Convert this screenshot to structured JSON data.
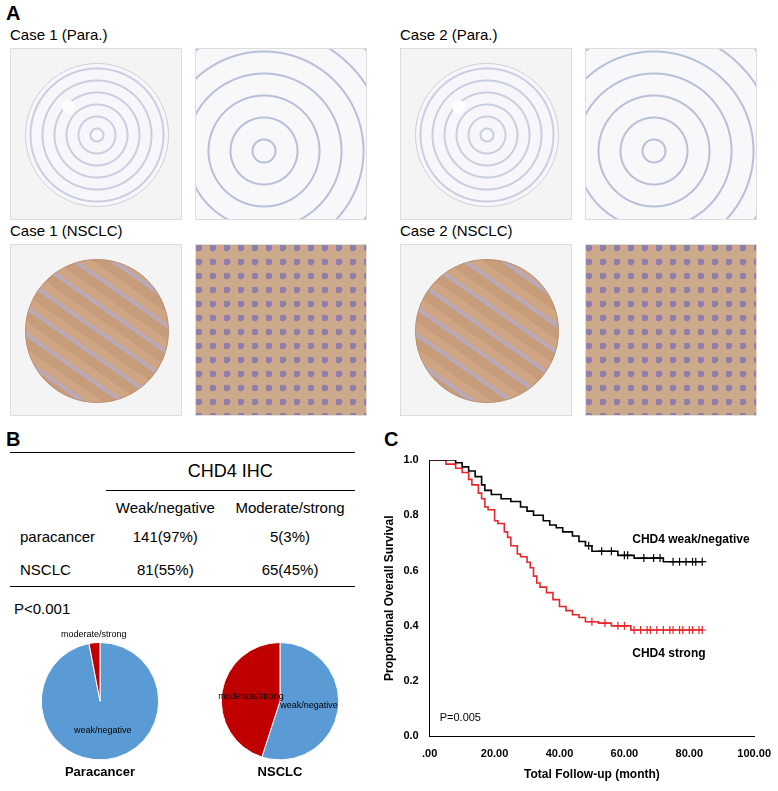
{
  "panel_labels": [
    "A",
    "B",
    "C"
  ],
  "images": [
    {
      "label": "Case 1 (Para.)"
    },
    {
      "label": "Case 2 (Para.)"
    },
    {
      "label": "Case 1 (NSCLC)"
    },
    {
      "label": "Case 2 (NSCLC)"
    }
  ],
  "table": {
    "title": "CHD4 IHC",
    "columns": [
      "Weak/negative",
      "Moderate/strong"
    ],
    "rows": [
      {
        "label": "paracancer",
        "cells": [
          "141(97%)",
          "5(3%)"
        ]
      },
      {
        "label": "NSCLC",
        "cells": [
          "81(55%)",
          "65(45%)"
        ]
      }
    ],
    "note": "P<0.001"
  },
  "chart_data": [
    {
      "type": "pie",
      "title": "Paracancer",
      "categories": [
        "weak/negative",
        "moderate/strong"
      ],
      "values": [
        97,
        3
      ],
      "colors": [
        "#5b9bd5",
        "#c00000"
      ]
    },
    {
      "type": "pie",
      "title": "NSCLC",
      "categories": [
        "weak/negative",
        "moderate/strong"
      ],
      "values": [
        55,
        45
      ],
      "colors": [
        "#5b9bd5",
        "#c00000"
      ]
    },
    {
      "type": "line",
      "x_label": "Total Follow-up (month)",
      "y_label": "Proportional Overall Survival",
      "xlim": [
        0,
        100
      ],
      "xticks": [
        {
          "value": 0,
          "label": ".00"
        },
        {
          "value": 20,
          "label": "20.00"
        },
        {
          "value": 40,
          "label": "40.00"
        },
        {
          "value": 60,
          "label": "60.00"
        },
        {
          "value": 80,
          "label": "80.00"
        },
        {
          "value": 100,
          "label": "100.00"
        }
      ],
      "ylim": [
        0,
        1
      ],
      "yticks": [
        {
          "value": 0,
          "label": "0.0"
        },
        0.2,
        0.4,
        0.6,
        0.8,
        {
          "value": 1,
          "label": "1.0"
        }
      ],
      "grid": false,
      "line_style": "step",
      "annotations": [
        "P=0.005"
      ],
      "series": [
        {
          "name": "CHD4 weak/negative",
          "color": "#000000",
          "marker": "cross",
          "x": [
            0,
            8,
            10,
            12,
            14,
            16,
            17,
            19,
            22,
            25,
            28,
            30,
            32,
            35,
            37,
            39,
            41,
            44,
            46,
            48,
            50,
            58,
            63,
            72,
            84
          ],
          "values": [
            1,
            0.99,
            0.975,
            0.96,
            0.94,
            0.91,
            0.89,
            0.875,
            0.86,
            0.85,
            0.83,
            0.815,
            0.8,
            0.78,
            0.765,
            0.755,
            0.74,
            0.725,
            0.705,
            0.69,
            0.67,
            0.655,
            0.645,
            0.632,
            0.632
          ],
          "censor_x": [
            49,
            53,
            56,
            60,
            61,
            66,
            69,
            71,
            75,
            77,
            79,
            81,
            82,
            84
          ],
          "censor_y": [
            0.69,
            0.67,
            0.67,
            0.655,
            0.655,
            0.645,
            0.645,
            0.645,
            0.632,
            0.632,
            0.632,
            0.632,
            0.632,
            0.632
          ]
        },
        {
          "name": "CHD4 strong",
          "color": "#e8262a",
          "marker": "cross",
          "x": [
            0,
            5,
            8,
            10,
            12,
            13,
            15,
            16,
            17,
            18,
            20,
            21,
            23,
            24,
            25,
            27,
            28,
            30,
            31,
            32,
            33,
            34,
            36,
            38,
            40,
            42,
            44,
            46,
            48,
            52,
            56,
            62,
            84
          ],
          "values": [
            1,
            0.985,
            0.97,
            0.955,
            0.93,
            0.91,
            0.88,
            0.86,
            0.83,
            0.82,
            0.78,
            0.77,
            0.74,
            0.72,
            0.69,
            0.66,
            0.65,
            0.63,
            0.61,
            0.58,
            0.555,
            0.54,
            0.52,
            0.495,
            0.47,
            0.455,
            0.44,
            0.43,
            0.415,
            0.41,
            0.4,
            0.385,
            0.385
          ],
          "censor_x": [
            50,
            54,
            58,
            60,
            63,
            65,
            67,
            68,
            70,
            72,
            74,
            75,
            77,
            78,
            80,
            81,
            83,
            84
          ],
          "censor_y": [
            0.415,
            0.41,
            0.4,
            0.4,
            0.385,
            0.385,
            0.385,
            0.385,
            0.385,
            0.385,
            0.385,
            0.385,
            0.385,
            0.385,
            0.385,
            0.385,
            0.385,
            0.385
          ]
        }
      ]
    }
  ]
}
